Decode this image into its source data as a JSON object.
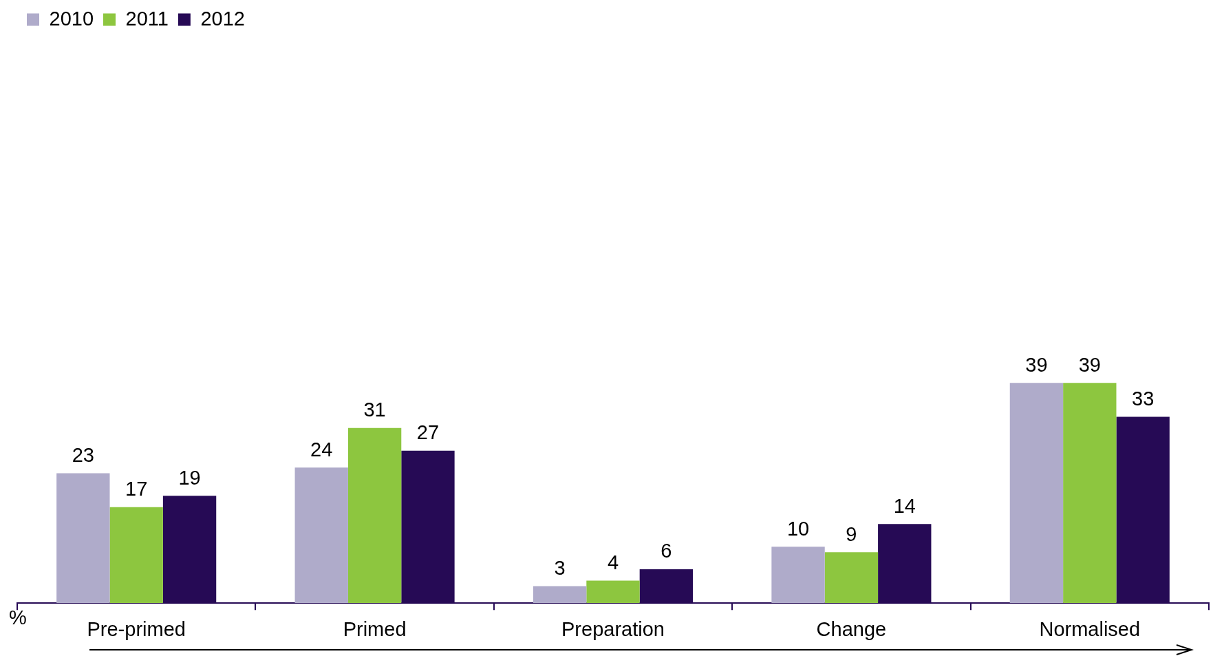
{
  "chart_data": {
    "type": "bar",
    "annotations": [
      "%"
    ],
    "categories": [
      "Pre-primed",
      "Primed",
      "Preparation",
      "Change",
      "Normalised"
    ],
    "series": [
      {
        "name": "2010",
        "color": "#afabca",
        "values": [
          23,
          24,
          3,
          10,
          39
        ]
      },
      {
        "name": "2011",
        "color": "#8dc63f",
        "values": [
          17,
          31,
          4,
          9,
          39
        ]
      },
      {
        "name": "2012",
        "color": "#260a55",
        "values": [
          19,
          27,
          6,
          14,
          33
        ]
      }
    ],
    "data_labels": true,
    "legend": "top left"
  }
}
